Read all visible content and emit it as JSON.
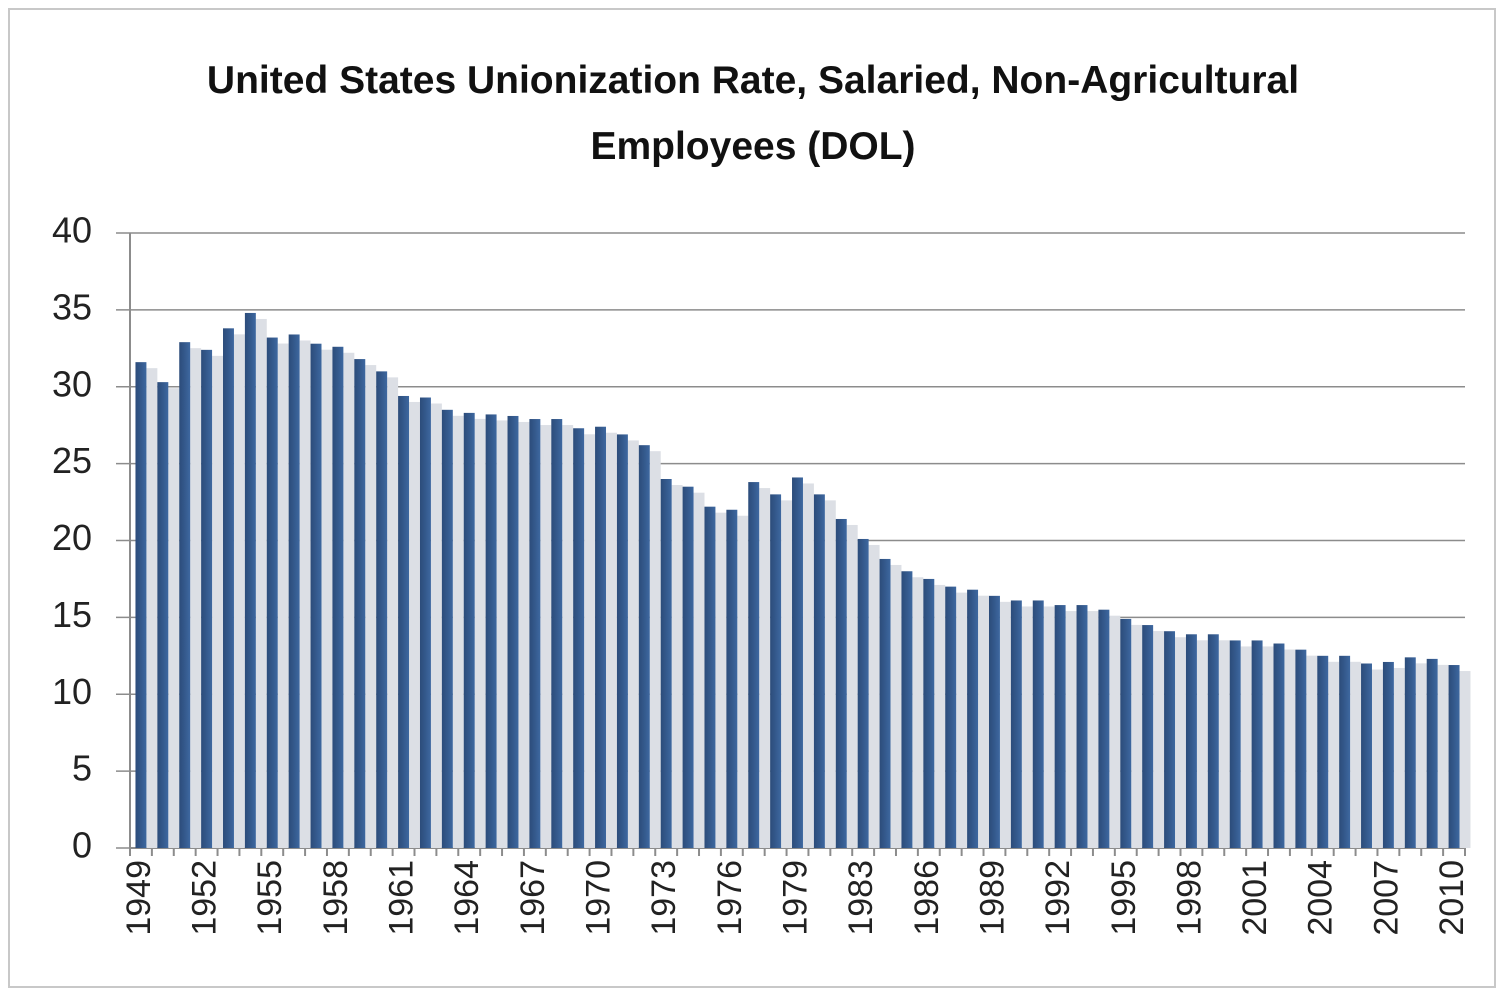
{
  "chart_data": {
    "type": "bar",
    "title": "United States Unionization Rate, Salaried, Non-Agricultural Employees (DOL)",
    "categories": [
      "1949",
      null,
      null,
      "1952",
      null,
      null,
      "1955",
      null,
      null,
      "1958",
      null,
      null,
      "1961",
      null,
      null,
      "1964",
      null,
      null,
      "1967",
      null,
      null,
      "1970",
      null,
      null,
      "1973",
      null,
      null,
      "1976",
      null,
      null,
      "1979",
      null,
      null,
      "1983",
      null,
      null,
      "1986",
      null,
      null,
      "1989",
      null,
      null,
      "1992",
      null,
      null,
      "1995",
      null,
      null,
      "1998",
      null,
      null,
      "2001",
      null,
      null,
      "2004",
      null,
      null,
      "2007",
      null,
      null,
      "2010"
    ],
    "values": [
      31.6,
      30.3,
      32.9,
      32.4,
      33.8,
      34.8,
      33.2,
      33.4,
      32.8,
      32.6,
      31.8,
      31.0,
      29.4,
      29.3,
      28.5,
      28.3,
      28.2,
      28.1,
      27.9,
      27.9,
      27.3,
      27.4,
      26.9,
      26.2,
      24.0,
      23.5,
      22.2,
      22.0,
      23.8,
      23.0,
      24.1,
      23.0,
      21.4,
      20.1,
      18.8,
      18.0,
      17.5,
      17.0,
      16.8,
      16.4,
      16.1,
      16.1,
      15.8,
      15.8,
      15.5,
      14.9,
      14.5,
      14.1,
      13.9,
      13.9,
      13.5,
      13.5,
      13.3,
      12.9,
      12.5,
      12.5,
      12.0,
      12.1,
      12.4,
      12.3,
      11.9
    ],
    "color": "#34598c",
    "ylim": [
      0,
      40
    ],
    "yticks": [
      0,
      5,
      10,
      15,
      20,
      25,
      30,
      35,
      40
    ],
    "grid": true
  }
}
